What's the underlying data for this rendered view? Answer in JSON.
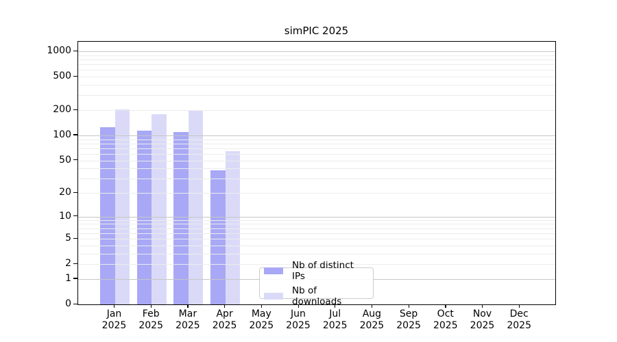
{
  "title": "simPIC 2025",
  "chart_data": {
    "type": "bar",
    "title": "simPIC 2025",
    "categories": [
      "Jan 2025",
      "Feb 2025",
      "Mar 2025",
      "Apr 2025",
      "May 2025",
      "Jun 2025",
      "Jul 2025",
      "Aug 2025",
      "Sep 2025",
      "Oct 2025",
      "Nov 2025",
      "Dec 2025"
    ],
    "x_months": [
      "Jan",
      "Feb",
      "Mar",
      "Apr",
      "May",
      "Jun",
      "Jul",
      "Aug",
      "Sep",
      "Oct",
      "Nov",
      "Dec"
    ],
    "x_year": "2025",
    "series": [
      {
        "name": "Nb of distinct IPs",
        "color": "#a8a8f6",
        "values": [
          125,
          114,
          110,
          38,
          0,
          0,
          0,
          0,
          0,
          0,
          0,
          0
        ]
      },
      {
        "name": "Nb of downloads",
        "color": "#dadaf8",
        "values": [
          205,
          180,
          200,
          65,
          0,
          0,
          0,
          0,
          0,
          0,
          0,
          0
        ]
      }
    ],
    "yscale": "log1p",
    "ylim": [
      0,
      1290
    ],
    "ytick_values": [
      0,
      1,
      2,
      5,
      10,
      20,
      50,
      100,
      200,
      500,
      1000
    ],
    "ytick_labels": [
      "0",
      "1",
      "2",
      "5",
      "10",
      "20",
      "50",
      "100",
      "200",
      "500",
      "1000"
    ],
    "major_grid_values": [
      1,
      10,
      100,
      1000
    ],
    "minor_grid_values": [
      2,
      3,
      4,
      5,
      6,
      7,
      8,
      9,
      20,
      30,
      40,
      50,
      60,
      70,
      80,
      90,
      200,
      300,
      400,
      500,
      600,
      700,
      800,
      900
    ],
    "grid": true,
    "legend_position": "lower center inside",
    "colors": {
      "bar_distinct_ips": "#a8a8f6",
      "bar_downloads": "#dadaf8",
      "major_grid": "#c6c6c6",
      "minor_grid": "#ececec",
      "axis": "#000000",
      "text": "#000000",
      "legend_border": "#cccccc",
      "background": "#ffffff"
    }
  }
}
